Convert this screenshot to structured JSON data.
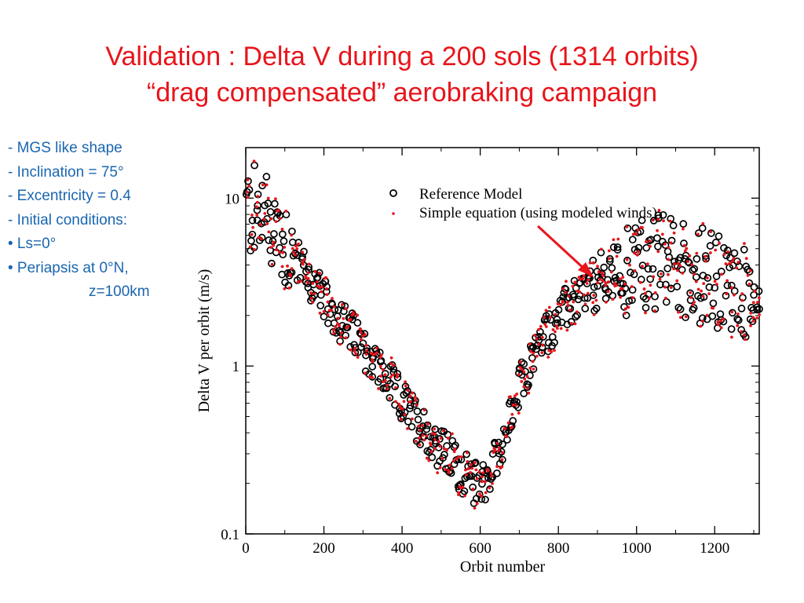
{
  "slide": {
    "title_line1": "Validation : Delta V during a 200 sols (1314 orbits)",
    "title_line2": "“drag compensated” aerobraking campaign",
    "bullets": [
      "- MGS like shape",
      "- Inclination = 75°",
      "- Excentricity = 0.4",
      "- Initial conditions:",
      "•  Ls=0°",
      "• Periapsis at 0°N,",
      "z=100km"
    ],
    "colors": {
      "title": "#e8141b",
      "bullets": "#1a66b0",
      "arrow": "#e8141b"
    }
  },
  "chart_data": {
    "type": "scatter",
    "xlabel": "Orbit number",
    "ylabel": "Delta V per orbit (m/s)",
    "xlim": [
      0,
      1314
    ],
    "ylim": [
      0.1,
      20
    ],
    "yscale": "log",
    "x_ticks": [
      "0",
      "200",
      "400",
      "600",
      "800",
      "1000",
      "1200"
    ],
    "y_ticks": [
      "0.1",
      "1",
      "10"
    ],
    "grid": false,
    "legend_position": "top-right",
    "series": [
      {
        "name": "Reference Model",
        "marker": "open-circle",
        "color": "#000000"
      },
      {
        "name": "Simple equation (using modeled winds)",
        "marker": "dot",
        "color": "#e8141b"
      }
    ],
    "trend_points": [
      [
        0,
        8.5
      ],
      [
        60,
        7.5
      ],
      [
        100,
        5.5
      ],
      [
        150,
        3.6
      ],
      [
        200,
        2.4
      ],
      [
        300,
        1.3
      ],
      [
        400,
        0.6
      ],
      [
        500,
        0.32
      ],
      [
        580,
        0.2
      ],
      [
        620,
        0.22
      ],
      [
        660,
        0.38
      ],
      [
        700,
        0.75
      ],
      [
        750,
        1.4
      ],
      [
        800,
        2.0
      ],
      [
        850,
        2.6
      ],
      [
        900,
        3.1
      ],
      [
        950,
        3.6
      ],
      [
        1000,
        4.0
      ],
      [
        1050,
        4.2
      ],
      [
        1100,
        4.0
      ],
      [
        1150,
        3.6
      ],
      [
        1200,
        3.1
      ],
      [
        1250,
        2.7
      ],
      [
        1314,
        2.5
      ]
    ],
    "annotation": "red arrow pointing from the legend to the model curve near orbit 900"
  }
}
